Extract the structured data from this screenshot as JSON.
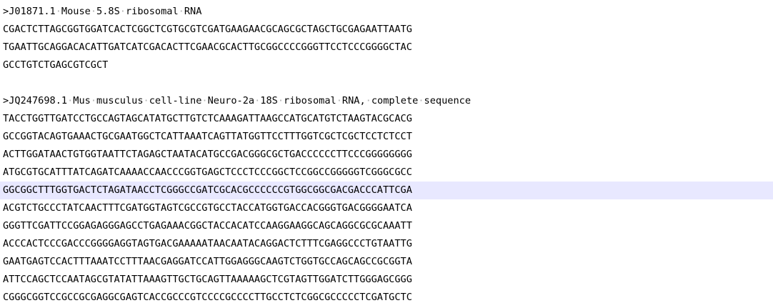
{
  "editor": {
    "lines": [
      ">J01871.1 Mouse 5.8S ribosomal RNA",
      "CGACTCTTAGCGGTGGATCACTCGGCTCGTGCGTCGATGAAGAACGCAGCGCTAGCTGCGAGAATTAATG",
      "TGAATTGCAGGACACATTGATCATCGACACTTCGAACGCACTTGCGGCCCCGGGTTCCTCCCGGGGCTAC",
      "GCCTGTCTGAGCGTCGCT",
      "",
      ">JQ247698.1 Mus musculus cell-line Neuro-2a 18S ribosomal RNA, complete sequence",
      "TACCTGGTTGATCCTGCCAGTAGCATATGCTTGTCTCAAAGATTAAGCCATGCATGTCTAAGTACGCACG",
      "GCCGGTACAGTGAAACTGCGAATGGCTCATTAAATCAGTTATGGTTCCTTTGGTCGCTCGCTCCTCTCCT",
      "ACTTGGATAACTGTGGTAATTCTAGAGCTAATACATGCCGACGGGCGCTGACCCCCCTTCCCGGGGGGGG",
      "ATGCGTGCATTTATCAGATCAAAACCAACCCGGTGAGCTCCCTCCCGGCTCCGGCCGGGGGTCGGGCGCC",
      "GGCGGCTTTGGTGACTCTAGATAACCTCGGGCCGATCGCACGCCCCCCGTGGCGGCGACGACCCATTCGA",
      "ACGTCTGCCCTATCAACTTTCGATGGTAGTCGCCGTGCCTACCATGGTGACCACGGGTGACGGGGAATCA",
      "GGGTTCGATTCCGGAGAGGGAGCCTGAGAAACGGCTACCACATCCAAGGAAGGCAGCAGGCGCGCAAATT",
      "ACCCACTCCCGACCCGGGGAGGTAGTGACGAAAAATAACAATACAGGACTCTTTCGAGGCCCTGTAATTG",
      "GAATGAGTCCACTTTAAATCCTTTAACGAGGATCCATTGGAGGGCAAGTCTGGTGCCAGCAGCCGCGGTA",
      "ATTCCAGCTCCAATAGCGTATATTAAAGTTGCTGCAGTTAAAAAGCTCGTAGTTGGATCTTGGGAGCGGG",
      "CGGGCGGTCCGCCGCGAGGCGAGTCACCGCCCGTCCCCGCCCCTTGCCTCTCGGCGCCCCCTCGATGCTC"
    ],
    "current_line_index": 10,
    "current_line_color": "#e8e8ff"
  }
}
